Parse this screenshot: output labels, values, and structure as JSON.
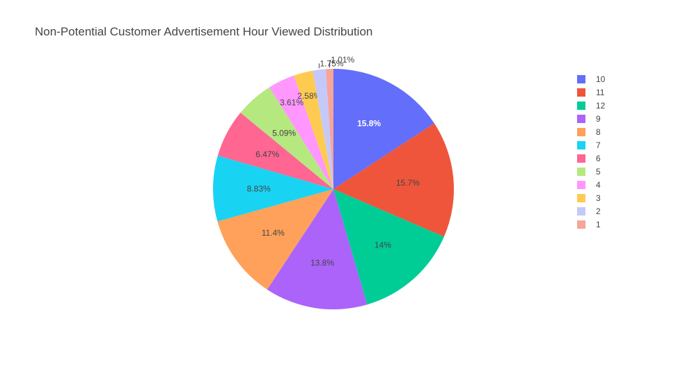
{
  "chart_data": {
    "type": "pie",
    "title": "Non-Potential Customer Advertisement Hour Viewed Distribution",
    "slices": [
      {
        "label": "10",
        "value": 15.8,
        "text": "15.8%",
        "color": "#636efa",
        "text_color": "#ffffff",
        "text_weight": "bold"
      },
      {
        "label": "11",
        "value": 15.7,
        "text": "15.7%",
        "color": "#ef553b",
        "text_color": "#444444"
      },
      {
        "label": "12",
        "value": 14.0,
        "text": "14%",
        "color": "#00cc96",
        "text_color": "#444444"
      },
      {
        "label": "9",
        "value": 13.8,
        "text": "13.8%",
        "color": "#ab63fa",
        "text_color": "#444444"
      },
      {
        "label": "8",
        "value": 11.4,
        "text": "11.4%",
        "color": "#ffa15a",
        "text_color": "#444444"
      },
      {
        "label": "7",
        "value": 8.83,
        "text": "8.83%",
        "color": "#19d3f3",
        "text_color": "#444444"
      },
      {
        "label": "6",
        "value": 6.47,
        "text": "6.47%",
        "color": "#ff6692",
        "text_color": "#444444"
      },
      {
        "label": "5",
        "value": 5.09,
        "text": "5.09%",
        "color": "#b6e880",
        "text_color": "#444444"
      },
      {
        "label": "4",
        "value": 3.61,
        "text": "3.61%",
        "color": "#ff97ff",
        "text_color": "#444444"
      },
      {
        "label": "3",
        "value": 2.58,
        "text": "2.58%",
        "color": "#fecb52",
        "text_color": "#444444"
      },
      {
        "label": "2",
        "value": 1.75,
        "text": "1.75%",
        "color": "#c5c9f9",
        "text_color": "#444444",
        "outside": true
      },
      {
        "label": "1",
        "value": 1.01,
        "text": "1.01%",
        "color": "#f5a59a",
        "text_color": "#444444",
        "outside": true
      }
    ],
    "direction": "clockwise",
    "start": "12 o'clock",
    "legend_position": "right"
  }
}
